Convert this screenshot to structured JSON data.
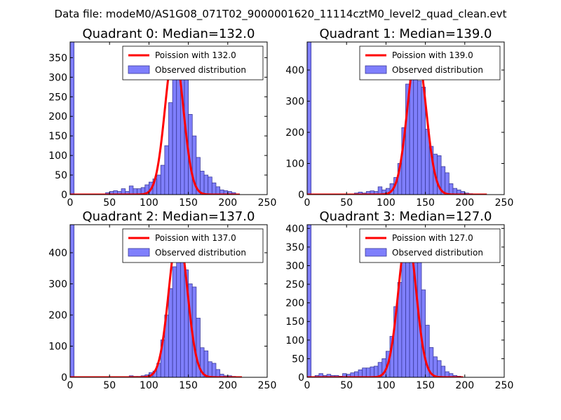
{
  "figure_title": "Data file: modeM0/AS1G08_071T02_9000001620_11114cztM0_level2_quad_clean.evt",
  "colors": {
    "bar_fill": "#7f7ffc",
    "bar_edge": "#3a3a9a",
    "poisson": "#ff0000"
  },
  "chart_data": [
    {
      "type": "bar",
      "title": "Quadrant 0: Median=132.0",
      "xlim": [
        0,
        250
      ],
      "ylim": [
        0,
        390
      ],
      "xticks": [
        0,
        50,
        100,
        150,
        200,
        250
      ],
      "yticks": [
        0,
        50,
        100,
        150,
        200,
        250,
        300,
        350
      ],
      "bin_width": 5,
      "bins": [
        [
          45,
          5
        ],
        [
          50,
          8
        ],
        [
          55,
          10
        ],
        [
          60,
          8
        ],
        [
          65,
          15
        ],
        [
          70,
          8
        ],
        [
          75,
          22
        ],
        [
          80,
          15
        ],
        [
          85,
          15
        ],
        [
          90,
          18
        ],
        [
          95,
          25
        ],
        [
          100,
          32
        ],
        [
          105,
          40
        ],
        [
          110,
          50
        ],
        [
          115,
          75
        ],
        [
          120,
          125
        ],
        [
          125,
          235
        ],
        [
          130,
          325
        ],
        [
          135,
          345
        ],
        [
          140,
          325
        ],
        [
          145,
          305
        ],
        [
          150,
          205
        ],
        [
          155,
          150
        ],
        [
          160,
          95
        ],
        [
          165,
          60
        ],
        [
          170,
          50
        ],
        [
          175,
          45
        ],
        [
          180,
          30
        ],
        [
          185,
          20
        ],
        [
          190,
          12
        ],
        [
          195,
          10
        ],
        [
          200,
          8
        ],
        [
          205,
          5
        ],
        [
          210,
          2
        ]
      ],
      "edge_bin": {
        "x": 0,
        "value": 390
      },
      "poisson": {
        "mean": 132.0,
        "peak": 370,
        "x_range": [
          0,
          215
        ]
      },
      "legend": [
        "Poission with 132.0",
        "Observed distribution"
      ]
    },
    {
      "type": "bar",
      "title": "Quadrant 1: Median=139.0",
      "xlim": [
        0,
        250
      ],
      "ylim": [
        0,
        490
      ],
      "xticks": [
        0,
        50,
        100,
        150,
        200,
        250
      ],
      "yticks": [
        0,
        100,
        200,
        300,
        400
      ],
      "bin_width": 5,
      "bins": [
        [
          60,
          5
        ],
        [
          65,
          8
        ],
        [
          70,
          5
        ],
        [
          75,
          10
        ],
        [
          80,
          12
        ],
        [
          85,
          10
        ],
        [
          90,
          25
        ],
        [
          95,
          15
        ],
        [
          100,
          20
        ],
        [
          105,
          35
        ],
        [
          110,
          55
        ],
        [
          115,
          100
        ],
        [
          120,
          215
        ],
        [
          125,
          355
        ],
        [
          130,
          380
        ],
        [
          135,
          415
        ],
        [
          140,
          365
        ],
        [
          145,
          345
        ],
        [
          150,
          210
        ],
        [
          155,
          155
        ],
        [
          160,
          130
        ],
        [
          165,
          125
        ],
        [
          170,
          90
        ],
        [
          175,
          70
        ],
        [
          180,
          35
        ],
        [
          185,
          20
        ],
        [
          190,
          15
        ],
        [
          195,
          10
        ],
        [
          200,
          5
        ],
        [
          205,
          3
        ],
        [
          210,
          2
        ]
      ],
      "edge_bin": {
        "x": 0,
        "value": 490
      },
      "poisson": {
        "mean": 139.0,
        "peak": 460,
        "x_range": [
          0,
          228
        ]
      },
      "legend": [
        "Poission with 139.0",
        "Observed distribution"
      ]
    },
    {
      "type": "bar",
      "title": "Quadrant 2: Median=137.0",
      "xlim": [
        0,
        250
      ],
      "ylim": [
        0,
        490
      ],
      "xticks": [
        0,
        50,
        100,
        150,
        200,
        250
      ],
      "yticks": [
        0,
        100,
        200,
        300,
        400
      ],
      "bin_width": 5,
      "bins": [
        [
          75,
          5
        ],
        [
          80,
          3
        ],
        [
          85,
          3
        ],
        [
          90,
          5
        ],
        [
          95,
          8
        ],
        [
          100,
          15
        ],
        [
          105,
          20
        ],
        [
          110,
          45
        ],
        [
          115,
          120
        ],
        [
          120,
          200
        ],
        [
          125,
          285
        ],
        [
          130,
          355
        ],
        [
          135,
          415
        ],
        [
          140,
          375
        ],
        [
          145,
          345
        ],
        [
          150,
          300
        ],
        [
          155,
          290
        ],
        [
          160,
          190
        ],
        [
          165,
          95
        ],
        [
          170,
          85
        ],
        [
          175,
          50
        ],
        [
          180,
          45
        ],
        [
          185,
          25
        ],
        [
          190,
          10
        ],
        [
          195,
          5
        ],
        [
          200,
          5
        ],
        [
          205,
          3
        ]
      ],
      "edge_bin": {
        "x": 0,
        "value": 490
      },
      "poisson": {
        "mean": 137.0,
        "peak": 465,
        "x_range": [
          0,
          218
        ]
      },
      "legend": [
        "Poission with 137.0",
        "Observed distribution"
      ]
    },
    {
      "type": "bar",
      "title": "Quadrant 3: Median=127.0",
      "xlim": [
        0,
        250
      ],
      "ylim": [
        0,
        410
      ],
      "xticks": [
        0,
        50,
        100,
        150,
        200,
        250
      ],
      "yticks": [
        0,
        50,
        100,
        150,
        200,
        250,
        300,
        350,
        400
      ],
      "bin_width": 5,
      "bins": [
        [
          10,
          5
        ],
        [
          15,
          10
        ],
        [
          20,
          5
        ],
        [
          25,
          8
        ],
        [
          30,
          5
        ],
        [
          35,
          5
        ],
        [
          40,
          3
        ],
        [
          45,
          10
        ],
        [
          50,
          8
        ],
        [
          55,
          12
        ],
        [
          60,
          15
        ],
        [
          65,
          20
        ],
        [
          70,
          25
        ],
        [
          75,
          25
        ],
        [
          80,
          28
        ],
        [
          85,
          30
        ],
        [
          90,
          40
        ],
        [
          95,
          50
        ],
        [
          100,
          70
        ],
        [
          105,
          110
        ],
        [
          110,
          190
        ],
        [
          115,
          255
        ],
        [
          120,
          335
        ],
        [
          125,
          380
        ],
        [
          130,
          360
        ],
        [
          135,
          355
        ],
        [
          140,
          315
        ],
        [
          145,
          235
        ],
        [
          150,
          140
        ],
        [
          155,
          80
        ],
        [
          160,
          55
        ],
        [
          165,
          45
        ],
        [
          170,
          30
        ],
        [
          175,
          15
        ],
        [
          180,
          10
        ],
        [
          185,
          5
        ],
        [
          190,
          3
        ]
      ],
      "edge_bin": {
        "x": 0,
        "value": 410
      },
      "poisson": {
        "mean": 127.0,
        "peak": 385,
        "x_range": [
          0,
          198
        ]
      },
      "legend": [
        "Poission with 127.0",
        "Observed distribution"
      ]
    }
  ]
}
